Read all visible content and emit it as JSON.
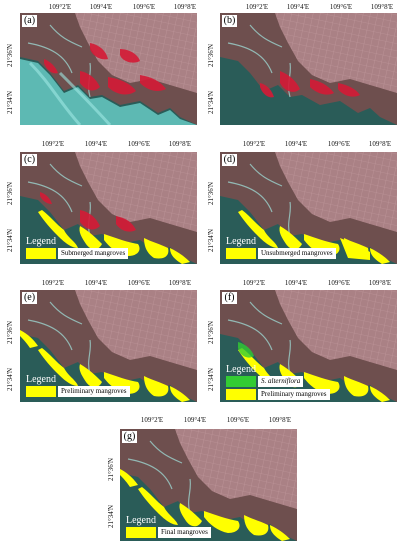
{
  "colors": {
    "sea": "#2a5c58",
    "land": "#6e4f4e",
    "urban": "#b58a8f",
    "mangrove_red": "#d51a36",
    "yellow": "#ffff00",
    "green": "#33cc33",
    "cyan": "#6fd8d2"
  },
  "panels": [
    {
      "id": "a",
      "label": "(a)",
      "lon_ticks": [
        "109°2'E",
        "109°4'E",
        "109°6'E",
        "109°8'E"
      ],
      "lat_ticks": [
        "21°36'N",
        "21°34'N"
      ]
    },
    {
      "id": "b",
      "label": "(b)",
      "lon_ticks": [
        "109°2'E",
        "109°4'E",
        "109°6'E",
        "109°8'E"
      ],
      "lat_ticks": [
        "21°36'N",
        "21°34'N"
      ]
    },
    {
      "id": "c",
      "label": "(c)",
      "lon_ticks": [
        "109°2'E",
        "109°4'E",
        "109°6'E",
        "109°8'E"
      ],
      "lat_ticks": [
        "21°36'N",
        "21°34'N"
      ],
      "legend": {
        "title": "Legend",
        "items": [
          {
            "label": "Submerged mangroves",
            "color": "#ffff00"
          }
        ]
      }
    },
    {
      "id": "d",
      "label": "(d)",
      "lon_ticks": [
        "109°2'E",
        "109°4'E",
        "109°6'E",
        "109°8'E"
      ],
      "lat_ticks": [
        "21°36'N",
        "21°34'N"
      ],
      "legend": {
        "title": "Legend",
        "items": [
          {
            "label": "Unsubmerged mangroves",
            "color": "#ffff00"
          }
        ]
      }
    },
    {
      "id": "e",
      "label": "(e)",
      "lon_ticks": [
        "109°2'E",
        "109°4'E",
        "109°6'E",
        "109°8'E"
      ],
      "lat_ticks": [
        "21°36'N",
        "21°34'N"
      ],
      "legend": {
        "title": "Legend",
        "items": [
          {
            "label": "Preliminary mangroves",
            "color": "#ffff00"
          }
        ]
      }
    },
    {
      "id": "f",
      "label": "(f)",
      "lon_ticks": [
        "109°2'E",
        "109°4'E",
        "109°6'E",
        "109°8'E"
      ],
      "lat_ticks": [
        "21°36'N",
        "21°34'N"
      ],
      "legend": {
        "title": "Legend",
        "items": [
          {
            "label": "S. alterniflora",
            "color": "#33cc33",
            "italic": true
          },
          {
            "label": "Preliminary mangroves",
            "color": "#ffff00"
          }
        ]
      }
    },
    {
      "id": "g",
      "label": "(g)",
      "lon_ticks": [
        "109°2'E",
        "109°4'E",
        "109°6'E",
        "109°8'E"
      ],
      "lat_ticks": [
        "21°36'N",
        "21°34'N"
      ],
      "legend": {
        "title": "Legend",
        "items": [
          {
            "label": "Final mangroves",
            "color": "#ffff00"
          }
        ]
      }
    }
  ]
}
